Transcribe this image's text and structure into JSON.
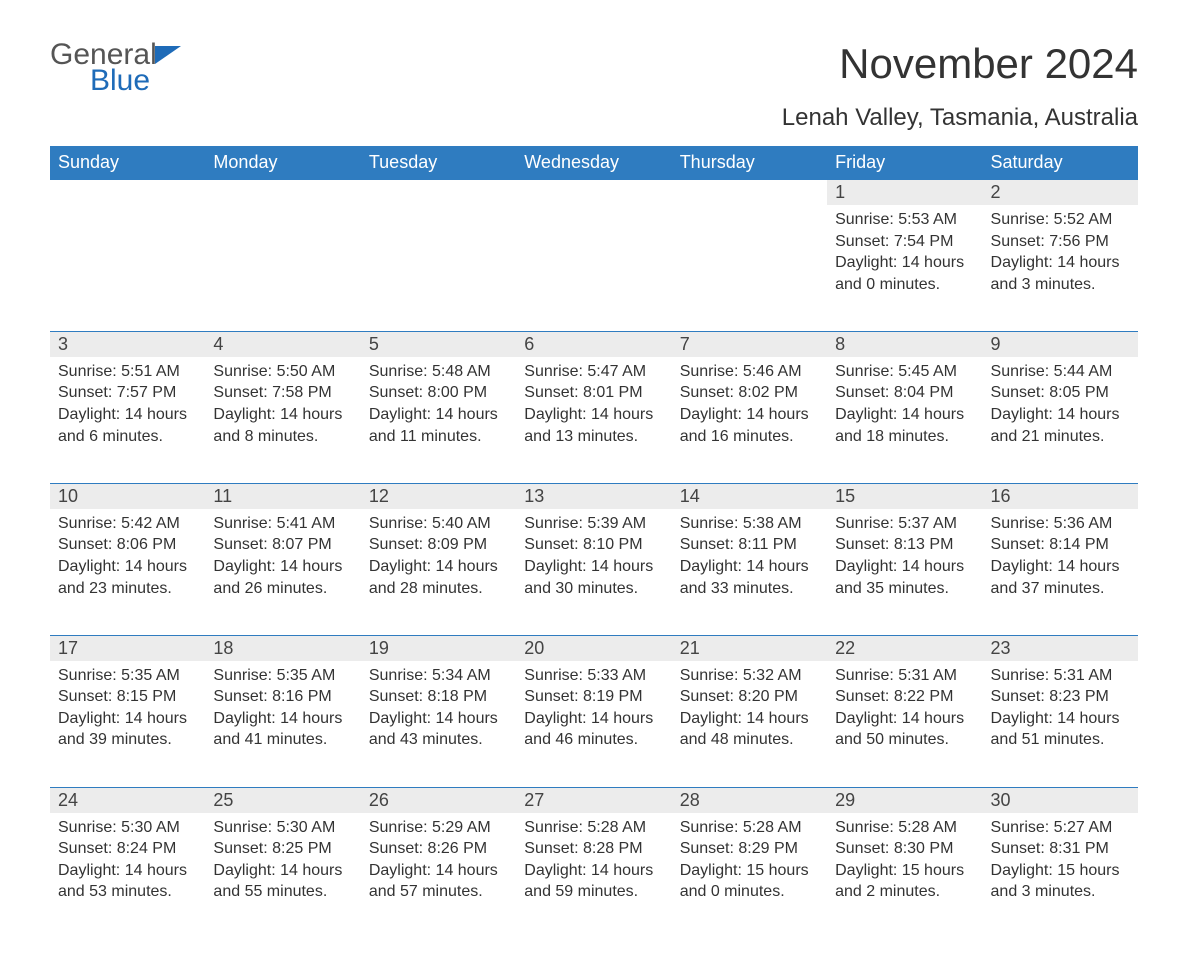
{
  "logo": {
    "text1": "General",
    "text2": "Blue",
    "accent": "#1e6bb8"
  },
  "header": {
    "month_title": "November 2024",
    "location": "Lenah Valley, Tasmania, Australia"
  },
  "colors": {
    "header_bg": "#2f7cc0",
    "header_text": "#ffffff",
    "daynum_bg": "#ececec",
    "row_border": "#2f7cc0",
    "body_text": "#333333",
    "page_bg": "#ffffff"
  },
  "day_headers": [
    "Sunday",
    "Monday",
    "Tuesday",
    "Wednesday",
    "Thursday",
    "Friday",
    "Saturday"
  ],
  "weeks": [
    {
      "nums": [
        "",
        "",
        "",
        "",
        "",
        "1",
        "2"
      ],
      "cells": [
        null,
        null,
        null,
        null,
        null,
        {
          "sunrise": "Sunrise: 5:53 AM",
          "sunset": "Sunset: 7:54 PM",
          "day1": "Daylight: 14 hours",
          "day2": "and 0 minutes."
        },
        {
          "sunrise": "Sunrise: 5:52 AM",
          "sunset": "Sunset: 7:56 PM",
          "day1": "Daylight: 14 hours",
          "day2": "and 3 minutes."
        }
      ]
    },
    {
      "nums": [
        "3",
        "4",
        "5",
        "6",
        "7",
        "8",
        "9"
      ],
      "cells": [
        {
          "sunrise": "Sunrise: 5:51 AM",
          "sunset": "Sunset: 7:57 PM",
          "day1": "Daylight: 14 hours",
          "day2": "and 6 minutes."
        },
        {
          "sunrise": "Sunrise: 5:50 AM",
          "sunset": "Sunset: 7:58 PM",
          "day1": "Daylight: 14 hours",
          "day2": "and 8 minutes."
        },
        {
          "sunrise": "Sunrise: 5:48 AM",
          "sunset": "Sunset: 8:00 PM",
          "day1": "Daylight: 14 hours",
          "day2": "and 11 minutes."
        },
        {
          "sunrise": "Sunrise: 5:47 AM",
          "sunset": "Sunset: 8:01 PM",
          "day1": "Daylight: 14 hours",
          "day2": "and 13 minutes."
        },
        {
          "sunrise": "Sunrise: 5:46 AM",
          "sunset": "Sunset: 8:02 PM",
          "day1": "Daylight: 14 hours",
          "day2": "and 16 minutes."
        },
        {
          "sunrise": "Sunrise: 5:45 AM",
          "sunset": "Sunset: 8:04 PM",
          "day1": "Daylight: 14 hours",
          "day2": "and 18 minutes."
        },
        {
          "sunrise": "Sunrise: 5:44 AM",
          "sunset": "Sunset: 8:05 PM",
          "day1": "Daylight: 14 hours",
          "day2": "and 21 minutes."
        }
      ]
    },
    {
      "nums": [
        "10",
        "11",
        "12",
        "13",
        "14",
        "15",
        "16"
      ],
      "cells": [
        {
          "sunrise": "Sunrise: 5:42 AM",
          "sunset": "Sunset: 8:06 PM",
          "day1": "Daylight: 14 hours",
          "day2": "and 23 minutes."
        },
        {
          "sunrise": "Sunrise: 5:41 AM",
          "sunset": "Sunset: 8:07 PM",
          "day1": "Daylight: 14 hours",
          "day2": "and 26 minutes."
        },
        {
          "sunrise": "Sunrise: 5:40 AM",
          "sunset": "Sunset: 8:09 PM",
          "day1": "Daylight: 14 hours",
          "day2": "and 28 minutes."
        },
        {
          "sunrise": "Sunrise: 5:39 AM",
          "sunset": "Sunset: 8:10 PM",
          "day1": "Daylight: 14 hours",
          "day2": "and 30 minutes."
        },
        {
          "sunrise": "Sunrise: 5:38 AM",
          "sunset": "Sunset: 8:11 PM",
          "day1": "Daylight: 14 hours",
          "day2": "and 33 minutes."
        },
        {
          "sunrise": "Sunrise: 5:37 AM",
          "sunset": "Sunset: 8:13 PM",
          "day1": "Daylight: 14 hours",
          "day2": "and 35 minutes."
        },
        {
          "sunrise": "Sunrise: 5:36 AM",
          "sunset": "Sunset: 8:14 PM",
          "day1": "Daylight: 14 hours",
          "day2": "and 37 minutes."
        }
      ]
    },
    {
      "nums": [
        "17",
        "18",
        "19",
        "20",
        "21",
        "22",
        "23"
      ],
      "cells": [
        {
          "sunrise": "Sunrise: 5:35 AM",
          "sunset": "Sunset: 8:15 PM",
          "day1": "Daylight: 14 hours",
          "day2": "and 39 minutes."
        },
        {
          "sunrise": "Sunrise: 5:35 AM",
          "sunset": "Sunset: 8:16 PM",
          "day1": "Daylight: 14 hours",
          "day2": "and 41 minutes."
        },
        {
          "sunrise": "Sunrise: 5:34 AM",
          "sunset": "Sunset: 8:18 PM",
          "day1": "Daylight: 14 hours",
          "day2": "and 43 minutes."
        },
        {
          "sunrise": "Sunrise: 5:33 AM",
          "sunset": "Sunset: 8:19 PM",
          "day1": "Daylight: 14 hours",
          "day2": "and 46 minutes."
        },
        {
          "sunrise": "Sunrise: 5:32 AM",
          "sunset": "Sunset: 8:20 PM",
          "day1": "Daylight: 14 hours",
          "day2": "and 48 minutes."
        },
        {
          "sunrise": "Sunrise: 5:31 AM",
          "sunset": "Sunset: 8:22 PM",
          "day1": "Daylight: 14 hours",
          "day2": "and 50 minutes."
        },
        {
          "sunrise": "Sunrise: 5:31 AM",
          "sunset": "Sunset: 8:23 PM",
          "day1": "Daylight: 14 hours",
          "day2": "and 51 minutes."
        }
      ]
    },
    {
      "nums": [
        "24",
        "25",
        "26",
        "27",
        "28",
        "29",
        "30"
      ],
      "cells": [
        {
          "sunrise": "Sunrise: 5:30 AM",
          "sunset": "Sunset: 8:24 PM",
          "day1": "Daylight: 14 hours",
          "day2": "and 53 minutes."
        },
        {
          "sunrise": "Sunrise: 5:30 AM",
          "sunset": "Sunset: 8:25 PM",
          "day1": "Daylight: 14 hours",
          "day2": "and 55 minutes."
        },
        {
          "sunrise": "Sunrise: 5:29 AM",
          "sunset": "Sunset: 8:26 PM",
          "day1": "Daylight: 14 hours",
          "day2": "and 57 minutes."
        },
        {
          "sunrise": "Sunrise: 5:28 AM",
          "sunset": "Sunset: 8:28 PM",
          "day1": "Daylight: 14 hours",
          "day2": "and 59 minutes."
        },
        {
          "sunrise": "Sunrise: 5:28 AM",
          "sunset": "Sunset: 8:29 PM",
          "day1": "Daylight: 15 hours",
          "day2": "and 0 minutes."
        },
        {
          "sunrise": "Sunrise: 5:28 AM",
          "sunset": "Sunset: 8:30 PM",
          "day1": "Daylight: 15 hours",
          "day2": "and 2 minutes."
        },
        {
          "sunrise": "Sunrise: 5:27 AM",
          "sunset": "Sunset: 8:31 PM",
          "day1": "Daylight: 15 hours",
          "day2": "and 3 minutes."
        }
      ]
    }
  ]
}
